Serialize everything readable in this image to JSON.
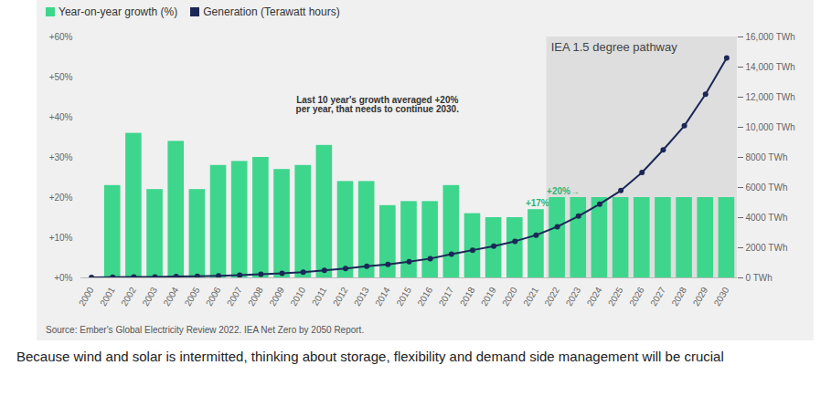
{
  "chart_data": {
    "type": "bar",
    "categories": [
      "2000",
      "2001",
      "2002",
      "2003",
      "2004",
      "2005",
      "2006",
      "2007",
      "2008",
      "2009",
      "2010",
      "2011",
      "2012",
      "2013",
      "2014",
      "2015",
      "2016",
      "2017",
      "2018",
      "2019",
      "2020",
      "2021",
      "2022",
      "2023",
      "2024",
      "2025",
      "2026",
      "2027",
      "2028",
      "2029",
      "2030"
    ],
    "series": [
      {
        "name": "Year-on-year growth (%)",
        "type": "bar",
        "color": "#3dd68c",
        "values": [
          null,
          23,
          36,
          22,
          34,
          22,
          28,
          29,
          30,
          27,
          28,
          33,
          24,
          24,
          18,
          19,
          19,
          23,
          16,
          15,
          15,
          17,
          20,
          20,
          20,
          20,
          20,
          20,
          20,
          20,
          20
        ]
      },
      {
        "name": "Generation (Terawatt hours)",
        "type": "line",
        "axis": "y2",
        "color": "#1b2757",
        "marker": "circle",
        "values": [
          32,
          40,
          55,
          67,
          90,
          110,
          140,
          180,
          235,
          300,
          380,
          500,
          620,
          770,
          900,
          1080,
          1280,
          1580,
          1840,
          2110,
          2430,
          2840,
          3400,
          4100,
          4900,
          5800,
          7000,
          8500,
          10100,
          12200,
          14600
        ]
      }
    ],
    "ylim": [
      0,
      60
    ],
    "yticks": [
      {
        "value": 0,
        "label": "+0%"
      },
      {
        "value": 10,
        "label": "+10%"
      },
      {
        "value": 20,
        "label": "+20%"
      },
      {
        "value": 30,
        "label": "+30%"
      },
      {
        "value": 40,
        "label": "+40%"
      },
      {
        "value": 50,
        "label": "+50%"
      },
      {
        "value": 60,
        "label": "+60%"
      }
    ],
    "y2lim": [
      0,
      16000
    ],
    "y2ticks": [
      {
        "value": 0,
        "label": "0 TWh"
      },
      {
        "value": 2000,
        "label": "2000 TWh"
      },
      {
        "value": 4000,
        "label": "4000 TWh"
      },
      {
        "value": 6000,
        "label": "6000 TWh"
      },
      {
        "value": 8000,
        "label": "8000 TWh"
      },
      {
        "value": 10000,
        "label": "10,000 TWh"
      },
      {
        "value": 12000,
        "label": "12,000 TWh"
      },
      {
        "value": 14000,
        "label": "14,000 TWh"
      },
      {
        "value": 16000,
        "label": "16,000 TWh"
      }
    ],
    "grid": false,
    "legend": "top-left",
    "shaded_region": {
      "label": "IEA 1.5 degree pathway",
      "from": "2022",
      "to": "2030"
    },
    "annotations": [
      {
        "text": "Last 10 year's growth averaged +20%\nper year, that needs to continue 2030."
      },
      {
        "text": "+17%",
        "category": "2021"
      },
      {
        "text": "+20%→",
        "category": "2022"
      }
    ],
    "source": "Source: Ember's Global Electricity Review 2022. IEA Net Zero by 2050 Report.",
    "caption": "Because wind and solar is intermitted, thinking about storage, flexibility and demand side management will be crucial"
  }
}
